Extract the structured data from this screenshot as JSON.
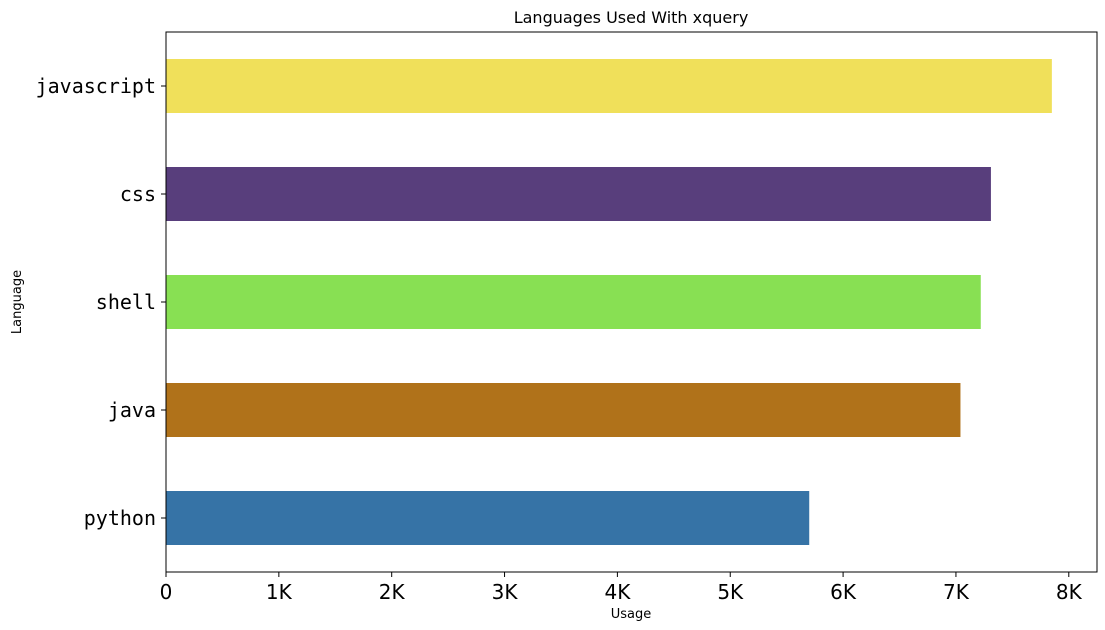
{
  "chart_data": {
    "type": "bar",
    "orientation": "horizontal",
    "title": "Languages Used With xquery",
    "xlabel": "Usage",
    "ylabel": "Language",
    "categories": [
      "javascript",
      "css",
      "shell",
      "java",
      "python"
    ],
    "values": [
      7850,
      7310,
      7220,
      7040,
      5700
    ],
    "colors": [
      "#f0e05a",
      "#583e7c",
      "#88e053",
      "#b0721a",
      "#3673a6"
    ],
    "xlim": [
      0,
      8250
    ],
    "xticks": [
      0,
      1000,
      2000,
      3000,
      4000,
      5000,
      6000,
      7000,
      8000
    ],
    "xtick_labels": [
      "0",
      "1K",
      "2K",
      "3K",
      "4K",
      "5K",
      "6K",
      "7K",
      "8K"
    ],
    "grid": false,
    "legend": "none"
  }
}
